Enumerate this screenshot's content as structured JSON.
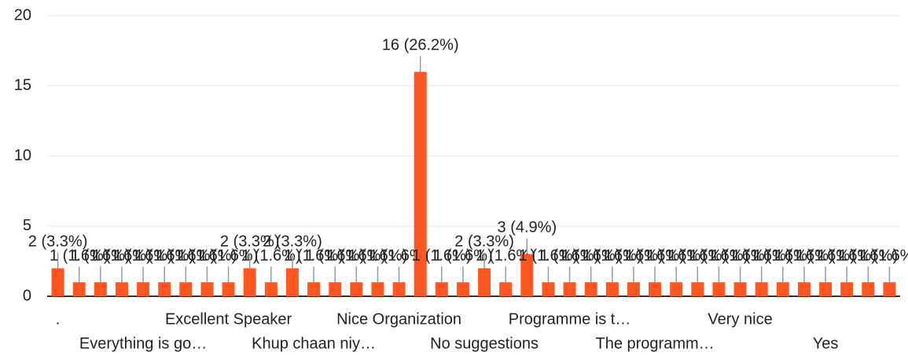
{
  "chart_data": {
    "type": "bar",
    "categories": [
      ".",
      null,
      null,
      null,
      "Everything is go…",
      null,
      null,
      null,
      "Excellent Speaker",
      null,
      null,
      null,
      "Khup chaan niy…",
      null,
      null,
      null,
      "Nice Organization",
      null,
      null,
      null,
      "No suggestions",
      null,
      null,
      null,
      "Programme is t…",
      null,
      null,
      null,
      "The programm…",
      null,
      null,
      null,
      "Very nice",
      null,
      null,
      null,
      "Yes",
      null,
      null,
      null
    ],
    "values": [
      2,
      1,
      1,
      1,
      1,
      1,
      1,
      1,
      1,
      2,
      1,
      2,
      1,
      1,
      1,
      1,
      1,
      16,
      1,
      1,
      2,
      1,
      3,
      1,
      1,
      1,
      1,
      1,
      1,
      1,
      1,
      1,
      1,
      1,
      1,
      1,
      1,
      1,
      1,
      1
    ],
    "value_labels": [
      "2 (3.3%)",
      "1 (1.6%)",
      "1 (1.6%)",
      "1 (1.6%)",
      "1 (1.6%)",
      "1 (1.6%)",
      "1 (1.6%)",
      "1 (1.6%)",
      "1 (1.6%)",
      "2 (3.3%)",
      "1 (1.6%)",
      "2 (3.3%)",
      "1 (1.6%)",
      "1 (1.6%)",
      "1 (1.6%)",
      "1 (1.6%)",
      "1 (1.6%)",
      "16 (26.2%)",
      "1 (1.6%)",
      "1 (1.6%)",
      "2 (3.3%)",
      "1 (1.6%)",
      "3 (4.9%)",
      "1 (1.6%)",
      "1 (1.6%)",
      "1 (1.6%)",
      "1 (1.6%)",
      "1 (1.6%)",
      "1 (1.6%)",
      "1 (1.6%)",
      "1 (1.6%)",
      "1 (1.6%)",
      "1 (1.6%)",
      "1 (1.6%)",
      "1 (1.6%)",
      "1 (1.6%)",
      "1 (1.6%)",
      "1 (1.6%)",
      "1 (1.6%)",
      "1 (1.6%)"
    ],
    "color": "#ff5722",
    "ylim": [
      0,
      20
    ],
    "yticks": [
      0,
      5,
      10,
      15,
      20
    ],
    "grid": true
  }
}
